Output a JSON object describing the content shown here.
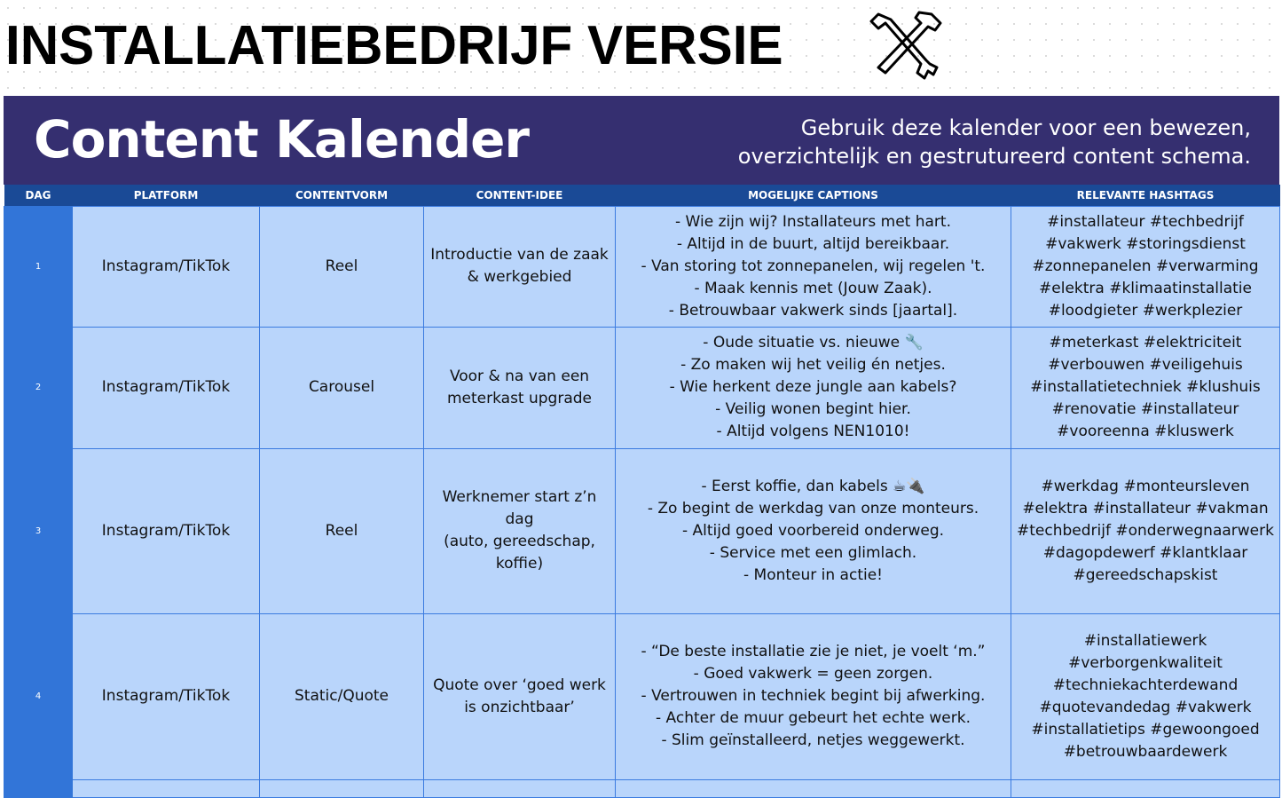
{
  "title": "INSTALLATIEBEDRIJF VERSIE",
  "title_icon": "tools-icon",
  "header": {
    "title": "Content Kalender",
    "subtitle_lines": [
      "Gebruik deze kalender voor een bewezen,",
      "overzichtelijk en gestrutureerd content schema."
    ]
  },
  "colors": {
    "band": "#352f70",
    "header_row": "#1a4a96",
    "cell": "#b9d5fb",
    "dag": "#3275d8",
    "border": "#3b7be0"
  },
  "columns": [
    "DAG",
    "PLATFORM",
    "CONTENTVORM",
    "CONTENT-IDEE",
    "MOGELIJKE CAPTIONS",
    "RELEVANTE HASHTAGS"
  ],
  "rows": [
    {
      "dag": "1",
      "platform": "Instagram/TikTok",
      "vorm": "Reel",
      "idee": [
        "Introductie van de zaak",
        "& werkgebied"
      ],
      "captions": [
        "- Wie zijn wij? Installateurs met hart.",
        "- Altijd in de buurt, altijd bereikbaar.",
        "- Van storing tot zonnepanelen, wij regelen 't.",
        "- Maak kennis met (Jouw Zaak).",
        "- Betrouwbaar vakwerk sinds [jaartal]."
      ],
      "hashtags": [
        "#installateur #techbedrijf",
        "#vakwerk #storingsdienst",
        "#zonnepanelen #verwarming",
        "#elektra #klimaatinstallatie",
        "#loodgieter #werkplezier"
      ]
    },
    {
      "dag": "2",
      "platform": "Instagram/TikTok",
      "vorm": "Carousel",
      "idee": [
        "Voor & na van een",
        "meterkast upgrade"
      ],
      "captions": [
        "- Oude situatie vs. nieuwe 🔧",
        "- Zo maken wij het veilig én netjes.",
        "- Wie herkent deze jungle aan kabels?",
        "- Veilig wonen begint hier.",
        "- Altijd volgens NEN1010!"
      ],
      "hashtags": [
        "#meterkast #elektriciteit",
        "#verbouwen #veiligehuis",
        "#installatietechniek #klushuis",
        "#renovatie #installateur",
        "#vooreenna #kluswerk"
      ]
    },
    {
      "dag": "3",
      "platform": "Instagram/TikTok",
      "vorm": "Reel",
      "idee": [
        "Werknemer start z’n dag",
        "(auto, gereedschap,",
        "koffie)"
      ],
      "captions": [
        "- Eerst koffie, dan kabels ☕🔌",
        "- Zo begint de werkdag van onze monteurs.",
        "- Altijd goed voorbereid onderweg.",
        "- Service met een glimlach.",
        "- Monteur in actie!"
      ],
      "hashtags": [
        "#werkdag #monteursleven",
        "#elektra #installateur #vakman",
        "#techbedrijf #onderwegnaarwerk",
        "#dagopdewerf #klantklaar",
        "#gereedschapskist"
      ]
    },
    {
      "dag": "4",
      "platform": "Instagram/TikTok",
      "vorm": "Static/Quote",
      "idee": [
        "Quote over ‘goed werk",
        "is onzichtbaar’"
      ],
      "captions": [
        "- “De beste installatie zie je niet, je voelt ‘m.”",
        "- Goed vakwerk = geen zorgen.",
        "- Vertrouwen in techniek begint bij afwerking.",
        "- Achter de muur gebeurt het echte werk.",
        "- Slim geïnstalleerd, netjes weggewerkt."
      ],
      "hashtags": [
        "#installatiewerk",
        "#verborgenkwaliteit",
        "#techniekachterdewand",
        "#quotevandedag #vakwerk",
        "#installatietips #gewoongoed",
        "#betrouwbaardewerk"
      ]
    }
  ]
}
